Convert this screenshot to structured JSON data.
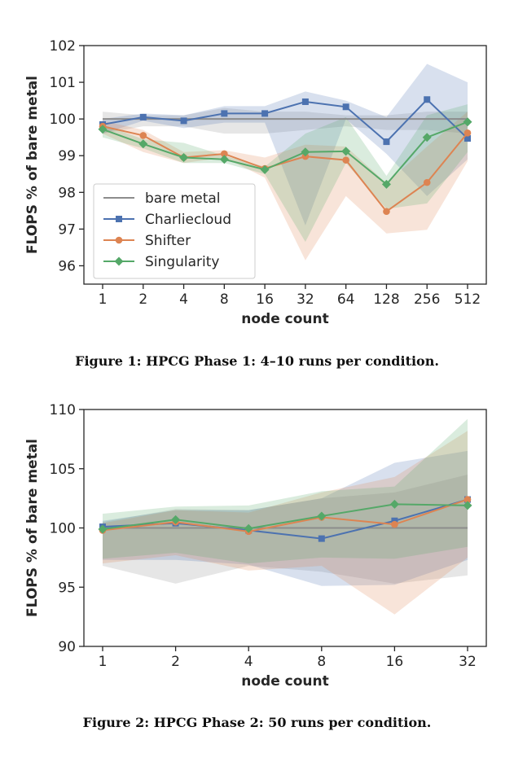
{
  "figures": [
    {
      "caption": "Figure 1: HPCG Phase 1: 4–10 runs per condition.",
      "chart_data": {
        "type": "line",
        "categories": [
          "1",
          "2",
          "4",
          "8",
          "16",
          "32",
          "64",
          "128",
          "256",
          "512"
        ],
        "xlabel": "node count",
        "ylabel": "FLOPS % of bare metal",
        "ylim": [
          95.5,
          102
        ],
        "yticks": [
          96,
          97,
          98,
          99,
          100,
          101,
          102
        ],
        "grid": false,
        "legend": "lower-left",
        "series": [
          {
            "name": "bare metal",
            "color": "#8c8c8c",
            "marker": "none",
            "values": [
              100,
              100,
              100,
              100,
              100,
              100,
              100,
              100,
              100,
              100
            ],
            "lower": [
              99.6,
              99.8,
              99.8,
              99.6,
              99.6,
              99.7,
              99.8,
              99.7,
              99.7,
              99.6
            ],
            "upper": [
              100.2,
              100.1,
              100.1,
              100.3,
              100.2,
              100.2,
              100.1,
              100.1,
              100.2,
              100.2
            ]
          },
          {
            "name": "Charliecloud",
            "color": "#4c72b0",
            "marker": "square",
            "values": [
              99.85,
              100.05,
              99.95,
              100.15,
              100.15,
              100.47,
              100.33,
              99.38,
              100.53,
              99.47
            ],
            "lower": [
              99.6,
              99.95,
              99.75,
              99.9,
              99.9,
              97.1,
              100.0,
              99.05,
              97.9,
              98.9
            ],
            "upper": [
              100.0,
              100.15,
              100.1,
              100.35,
              100.35,
              100.75,
              100.5,
              100.05,
              101.5,
              101.0
            ]
          },
          {
            "name": "Shifter",
            "color": "#dd8452",
            "marker": "circle",
            "values": [
              99.8,
              99.55,
              98.95,
              99.05,
              98.65,
              98.98,
              98.88,
              97.48,
              98.27,
              99.62
            ],
            "lower": [
              99.6,
              99.1,
              98.8,
              98.95,
              98.4,
              96.15,
              97.9,
              96.88,
              96.98,
              98.85
            ],
            "upper": [
              99.95,
              99.7,
              99.1,
              99.15,
              98.95,
              99.3,
              99.25,
              98.25,
              99.25,
              100.2
            ]
          },
          {
            "name": "Singularity",
            "color": "#55a868",
            "marker": "diamond",
            "values": [
              99.72,
              99.32,
              98.95,
              98.9,
              98.62,
              99.1,
              99.12,
              98.22,
              99.5,
              99.92
            ],
            "lower": [
              99.5,
              99.2,
              98.8,
              98.8,
              98.5,
              96.65,
              98.8,
              97.55,
              97.7,
              99.1
            ],
            "upper": [
              99.85,
              99.45,
              99.35,
              99.0,
              98.7,
              99.6,
              100.05,
              98.45,
              100.1,
              100.4
            ]
          }
        ]
      }
    },
    {
      "caption": "Figure 2: HPCG Phase 2: 50 runs per condition.",
      "chart_data": {
        "type": "line",
        "categories": [
          "1",
          "2",
          "4",
          "8",
          "16",
          "32"
        ],
        "xlabel": "node count",
        "ylabel": "FLOPS % of bare metal",
        "ylim": [
          90,
          110
        ],
        "yticks": [
          90,
          95,
          100,
          105,
          110
        ],
        "grid": false,
        "legend": "none",
        "series": [
          {
            "name": "bare metal",
            "color": "#8c8c8c",
            "marker": "none",
            "values": [
              100,
              100,
              100,
              100,
              100,
              100
            ],
            "lower": [
              96.8,
              95.3,
              96.8,
              96.3,
              95.3,
              96.0
            ],
            "upper": [
              100.5,
              101.6,
              101.5,
              102.5,
              103.0,
              104.5
            ]
          },
          {
            "name": "Charliecloud",
            "color": "#4c72b0",
            "marker": "square",
            "values": [
              100.1,
              100.4,
              99.8,
              99.1,
              100.6,
              102.4
            ],
            "lower": [
              97.3,
              97.3,
              96.9,
              95.1,
              95.2,
              97.3
            ],
            "upper": [
              100.6,
              101.5,
              101.5,
              102.5,
              105.5,
              106.5
            ]
          },
          {
            "name": "Shifter",
            "color": "#dd8452",
            "marker": "circle",
            "values": [
              99.8,
              100.5,
              99.7,
              100.9,
              100.3,
              102.4
            ],
            "lower": [
              97.0,
              97.7,
              96.4,
              96.8,
              92.7,
              97.5
            ],
            "upper": [
              100.4,
              101.5,
              101.3,
              103.0,
              104.3,
              108.2
            ]
          },
          {
            "name": "Singularity",
            "color": "#55a868",
            "marker": "diamond",
            "values": [
              99.9,
              100.7,
              99.95,
              101.0,
              102.0,
              101.9
            ],
            "lower": [
              97.4,
              97.9,
              97.0,
              97.5,
              97.4,
              98.4
            ],
            "upper": [
              101.2,
              101.8,
              101.9,
              103.1,
              103.5,
              109.2
            ]
          }
        ]
      }
    }
  ]
}
